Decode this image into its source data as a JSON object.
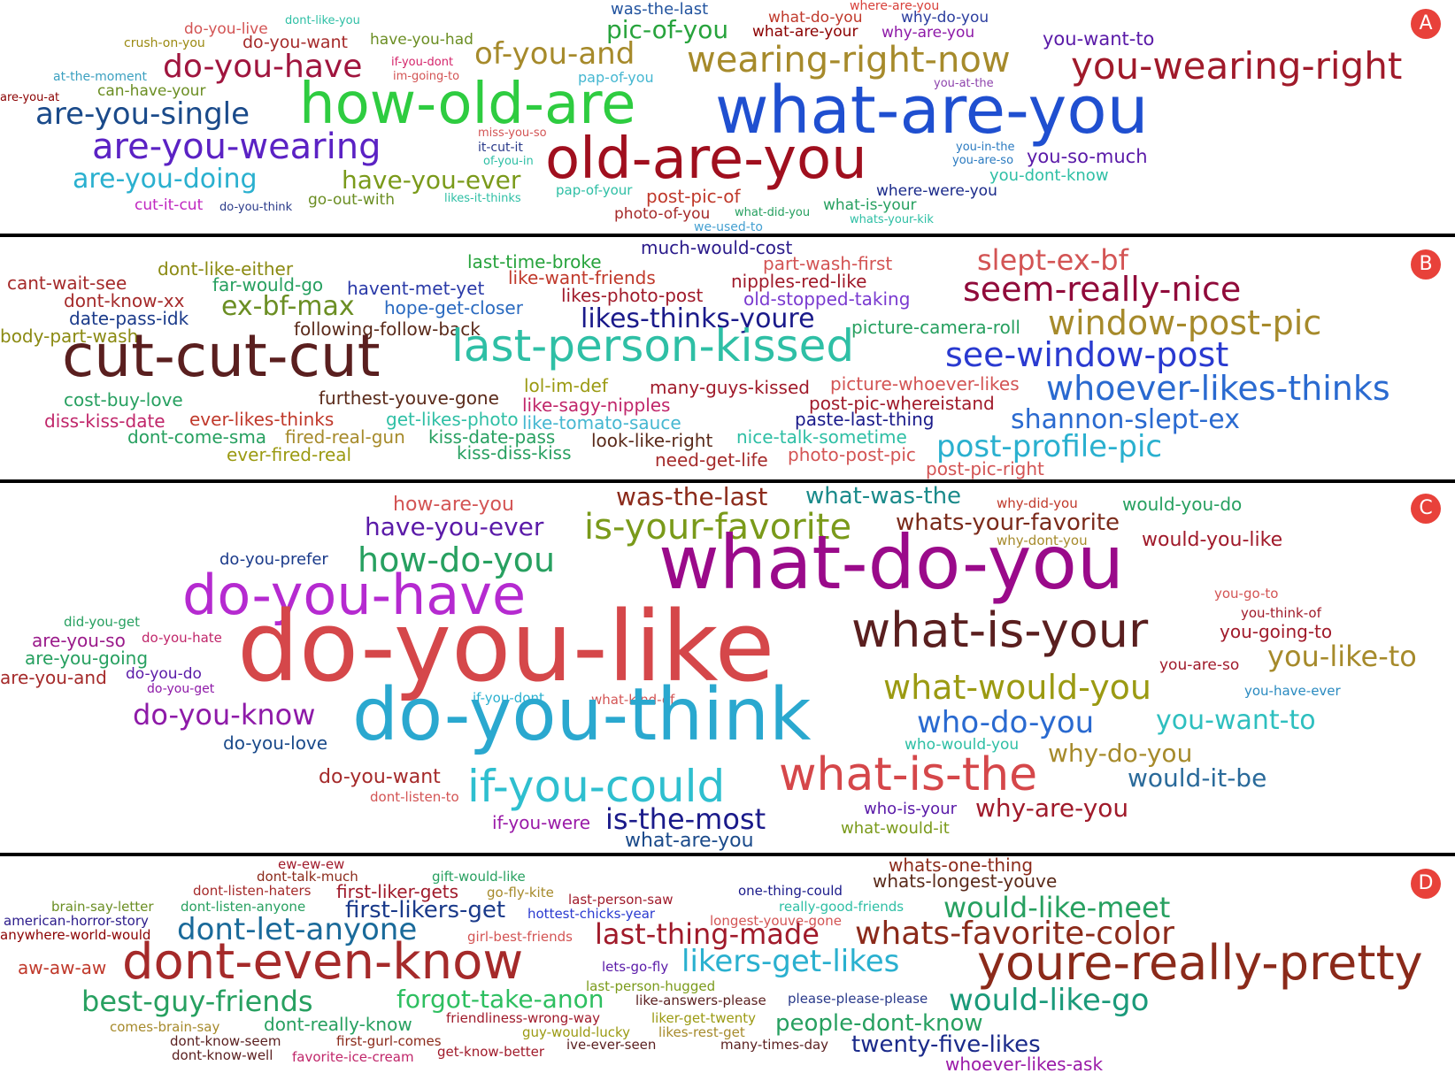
{
  "colors": {
    "badge": "#e8413a",
    "divider": "#000000"
  },
  "panels": [
    {
      "label": "A",
      "words": [
        {
          "t": "where-are-you",
          "c": "#d8403a"
        },
        {
          "t": "was-the-last",
          "c": "#23549f"
        },
        {
          "t": "what-do-you",
          "c": "#c0392b"
        },
        {
          "t": "why-do-you",
          "c": "#2c3e9f"
        },
        {
          "t": "dont-like-you",
          "c": "#2ebfa5"
        },
        {
          "t": "do-you-live",
          "c": "#d35454"
        },
        {
          "t": "pic-of-you",
          "c": "#27a33c"
        },
        {
          "t": "what-are-your",
          "c": "#8b0000"
        },
        {
          "t": "why-are-you",
          "c": "#8e1aa8"
        },
        {
          "t": "crush-on-you",
          "c": "#9b8a12"
        },
        {
          "t": "do-you-want",
          "c": "#a52a2a"
        },
        {
          "t": "have-you-had",
          "c": "#6b8e23"
        },
        {
          "t": "you-want-to",
          "c": "#5a1aa8"
        },
        {
          "t": "of-you-and",
          "c": "#a68a2b"
        },
        {
          "t": "wearing-right-now",
          "c": "#a68a2b"
        },
        {
          "t": "you-wearing-right",
          "c": "#a01a2a"
        },
        {
          "t": "if-you-dont",
          "c": "#d4246a"
        },
        {
          "t": "do-you-have",
          "c": "#a0153e"
        },
        {
          "t": "im-going-to",
          "c": "#d35454"
        },
        {
          "t": "at-the-moment",
          "c": "#3ba0c0"
        },
        {
          "t": "pap-of-you",
          "c": "#45b7d1"
        },
        {
          "t": "can-have-your",
          "c": "#6b8e23"
        },
        {
          "t": "you-at-the",
          "c": "#8e44ad"
        },
        {
          "t": "are-you-at",
          "c": "#8b0000"
        },
        {
          "t": "how-old-are",
          "c": "#2ecc40"
        },
        {
          "t": "what-are-you",
          "c": "#1f4fd0"
        },
        {
          "t": "are-you-single",
          "c": "#1a4a8a"
        },
        {
          "t": "miss-you-so",
          "c": "#d35454"
        },
        {
          "t": "are-you-wearing",
          "c": "#5b22c4"
        },
        {
          "t": "it-cut-it",
          "c": "#2a3a8a"
        },
        {
          "t": "of-you-in",
          "c": "#2ebfa5"
        },
        {
          "t": "old-are-you",
          "c": "#a00f1e"
        },
        {
          "t": "you-in-the",
          "c": "#2a7ac0"
        },
        {
          "t": "you-are-so",
          "c": "#2a7ac0"
        },
        {
          "t": "you-so-much",
          "c": "#5a1aa8"
        },
        {
          "t": "are-you-doing",
          "c": "#2ab0cf"
        },
        {
          "t": "have-you-ever",
          "c": "#7a9a1a"
        },
        {
          "t": "you-dont-know",
          "c": "#2ebfa5"
        },
        {
          "t": "pap-of-your",
          "c": "#2ebfa5"
        },
        {
          "t": "post-pic-of",
          "c": "#c0392b"
        },
        {
          "t": "where-were-you",
          "c": "#1a2a8a"
        },
        {
          "t": "likes-it-thinks",
          "c": "#2ebfa5"
        },
        {
          "t": "go-out-with",
          "c": "#6b8e23"
        },
        {
          "t": "cut-it-cut",
          "c": "#c026c0"
        },
        {
          "t": "do-you-think",
          "c": "#2a3a8a"
        },
        {
          "t": "what-is-your",
          "c": "#27a060"
        },
        {
          "t": "photo-of-you",
          "c": "#a52a2a"
        },
        {
          "t": "what-did-you",
          "c": "#27a060"
        },
        {
          "t": "whats-your-kik",
          "c": "#2ebfa5"
        },
        {
          "t": "we-used-to",
          "c": "#45a0d1"
        }
      ]
    },
    {
      "label": "B",
      "words": [
        {
          "t": "much-would-cost",
          "c": "#2a1a8a"
        },
        {
          "t": "last-time-broke",
          "c": "#27a33c"
        },
        {
          "t": "part-wash-first",
          "c": "#d35454"
        },
        {
          "t": "slept-ex-bf",
          "c": "#d35454"
        },
        {
          "t": "dont-like-either",
          "c": "#8b8a12"
        },
        {
          "t": "like-want-friends",
          "c": "#c0392b"
        },
        {
          "t": "cant-wait-see",
          "c": "#a52a2a"
        },
        {
          "t": "far-would-go",
          "c": "#27a060"
        },
        {
          "t": "havent-met-yet",
          "c": "#2a3aa8"
        },
        {
          "t": "nipples-red-like",
          "c": "#a01a2a"
        },
        {
          "t": "seem-really-nice",
          "c": "#900a3a"
        },
        {
          "t": "dont-know-xx",
          "c": "#a52a2a"
        },
        {
          "t": "likes-photo-post",
          "c": "#a01a2a"
        },
        {
          "t": "old-stopped-taking",
          "c": "#7a3ad0"
        },
        {
          "t": "ex-bf-max",
          "c": "#6b8e23"
        },
        {
          "t": "hope-get-closer",
          "c": "#2a6ac0"
        },
        {
          "t": "date-pass-idk",
          "c": "#1a3a8a"
        },
        {
          "t": "likes-thinks-youre",
          "c": "#1a1a8a"
        },
        {
          "t": "window-post-pic",
          "c": "#a68a2b"
        },
        {
          "t": "following-follow-back",
          "c": "#5a2a1a"
        },
        {
          "t": "picture-camera-roll",
          "c": "#27a060"
        },
        {
          "t": "body-part-wash",
          "c": "#8b8a12"
        },
        {
          "t": "cut-cut-cut",
          "c": "#5a1f1f"
        },
        {
          "t": "last-person-kissed",
          "c": "#2ebfa5"
        },
        {
          "t": "see-window-post",
          "c": "#2a3ad0"
        },
        {
          "t": "lol-im-def",
          "c": "#9b9a12"
        },
        {
          "t": "many-guys-kissed",
          "c": "#a01a2a"
        },
        {
          "t": "picture-whoever-likes",
          "c": "#d35454"
        },
        {
          "t": "whoever-likes-thinks",
          "c": "#2a6ad0"
        },
        {
          "t": "cost-buy-love",
          "c": "#27a060"
        },
        {
          "t": "furthest-youve-gone",
          "c": "#5a2a1a"
        },
        {
          "t": "like-sagy-nipples",
          "c": "#c0266a"
        },
        {
          "t": "post-pic-whereistand",
          "c": "#a01a2a"
        },
        {
          "t": "diss-kiss-date",
          "c": "#c0266a"
        },
        {
          "t": "ever-likes-thinks",
          "c": "#c0392b"
        },
        {
          "t": "get-likes-photo",
          "c": "#2ebfa5"
        },
        {
          "t": "paste-last-thing",
          "c": "#1a1a8a"
        },
        {
          "t": "shannon-slept-ex",
          "c": "#2a6ad0"
        },
        {
          "t": "like-tomato-sauce",
          "c": "#45b7d1"
        },
        {
          "t": "dont-come-sma",
          "c": "#27a060"
        },
        {
          "t": "fired-real-gun",
          "c": "#a68a2b"
        },
        {
          "t": "kiss-date-pass",
          "c": "#27a060"
        },
        {
          "t": "look-like-right",
          "c": "#5a2a1a"
        },
        {
          "t": "nice-talk-sometime",
          "c": "#2ebfa5"
        },
        {
          "t": "ever-fired-real",
          "c": "#9b9a12"
        },
        {
          "t": "kiss-diss-kiss",
          "c": "#27a060"
        },
        {
          "t": "need-get-life",
          "c": "#a52a2a"
        },
        {
          "t": "photo-post-pic",
          "c": "#d35454"
        },
        {
          "t": "post-profile-pic",
          "c": "#2ab0cf"
        },
        {
          "t": "post-pic-right",
          "c": "#d35454"
        }
      ]
    },
    {
      "label": "C",
      "words": [
        {
          "t": "was-the-last",
          "c": "#8b2a1a"
        },
        {
          "t": "what-was-the",
          "c": "#1a8a8a"
        },
        {
          "t": "how-are-you",
          "c": "#d35454"
        },
        {
          "t": "why-did-you",
          "c": "#c0392b"
        },
        {
          "t": "would-you-do",
          "c": "#27a060"
        },
        {
          "t": "have-you-ever",
          "c": "#5a1aa8"
        },
        {
          "t": "is-your-favorite",
          "c": "#7a9a1a"
        },
        {
          "t": "whats-your-favorite",
          "c": "#7a2a1a"
        },
        {
          "t": "why-dont-you",
          "c": "#a68a2b"
        },
        {
          "t": "would-you-like",
          "c": "#a01a2a"
        },
        {
          "t": "do-you-prefer",
          "c": "#1a3a8a"
        },
        {
          "t": "how-do-you",
          "c": "#27a060"
        },
        {
          "t": "what-do-you",
          "c": "#9a0a8a"
        },
        {
          "t": "do-you-have",
          "c": "#b52ad0"
        },
        {
          "t": "you-go-to",
          "c": "#d35454"
        },
        {
          "t": "you-think-of",
          "c": "#a01a2a"
        },
        {
          "t": "did-you-get",
          "c": "#27a060"
        },
        {
          "t": "do-you-like",
          "c": "#d5474a"
        },
        {
          "t": "what-is-your",
          "c": "#5a1f1f"
        },
        {
          "t": "you-going-to",
          "c": "#a01a2a"
        },
        {
          "t": "are-you-so",
          "c": "#9a1a8a"
        },
        {
          "t": "do-you-hate",
          "c": "#c0266a"
        },
        {
          "t": "are-you-going",
          "c": "#27a060"
        },
        {
          "t": "you-like-to",
          "c": "#a68a2b"
        },
        {
          "t": "you-are-so",
          "c": "#a01a2a"
        },
        {
          "t": "are-you-and",
          "c": "#a52a2a"
        },
        {
          "t": "do-you-do",
          "c": "#5a1aa8"
        },
        {
          "t": "do-you-get",
          "c": "#8e1aa8"
        },
        {
          "t": "what-would-you",
          "c": "#9b9a12"
        },
        {
          "t": "you-have-ever",
          "c": "#2a8ac0"
        },
        {
          "t": "if-you-dont",
          "c": "#2ab0cf"
        },
        {
          "t": "what-kind-of",
          "c": "#d35454"
        },
        {
          "t": "do-you-know",
          "c": "#8e1aa8"
        },
        {
          "t": "do-you-think",
          "c": "#2aa8cf"
        },
        {
          "t": "who-do-you",
          "c": "#2a6ad0"
        },
        {
          "t": "you-want-to",
          "c": "#2ebfbf"
        },
        {
          "t": "do-you-love",
          "c": "#1a4a8a"
        },
        {
          "t": "who-would-you",
          "c": "#2ebfa5"
        },
        {
          "t": "why-do-you",
          "c": "#a68a2b"
        },
        {
          "t": "do-you-want",
          "c": "#a52a2a"
        },
        {
          "t": "what-is-the",
          "c": "#d5474a"
        },
        {
          "t": "would-it-be",
          "c": "#2a6a9a"
        },
        {
          "t": "dont-listen-to",
          "c": "#d35454"
        },
        {
          "t": "if-you-could",
          "c": "#2ebfcf"
        },
        {
          "t": "who-is-your",
          "c": "#5a1aa8"
        },
        {
          "t": "why-are-you",
          "c": "#a01a2a"
        },
        {
          "t": "if-you-were",
          "c": "#9a1aa8"
        },
        {
          "t": "is-the-most",
          "c": "#1a1a8a"
        },
        {
          "t": "what-would-it",
          "c": "#7a9a1a"
        },
        {
          "t": "what-are-you",
          "c": "#1a4a8a"
        }
      ]
    },
    {
      "label": "D",
      "words": [
        {
          "t": "ew-ew-ew",
          "c": "#a01a2a"
        },
        {
          "t": "whats-one-thing",
          "c": "#8b2a1a"
        },
        {
          "t": "dont-talk-much",
          "c": "#8b2a1a"
        },
        {
          "t": "gift-would-like",
          "c": "#27a060"
        },
        {
          "t": "whats-longest-youve",
          "c": "#5a2a1a"
        },
        {
          "t": "dont-listen-haters",
          "c": "#a52a2a"
        },
        {
          "t": "first-liker-gets",
          "c": "#a01a2a"
        },
        {
          "t": "go-fly-kite",
          "c": "#a68a2b"
        },
        {
          "t": "one-thing-could",
          "c": "#1a1a8a"
        },
        {
          "t": "last-person-saw",
          "c": "#a01a2a"
        },
        {
          "t": "brain-say-letter",
          "c": "#6b8e23"
        },
        {
          "t": "dont-listen-anyone",
          "c": "#27a060"
        },
        {
          "t": "first-likers-get",
          "c": "#1a3a8a"
        },
        {
          "t": "hottest-chicks-year",
          "c": "#2a3ad0"
        },
        {
          "t": "really-good-friends",
          "c": "#2ebfa5"
        },
        {
          "t": "would-like-meet",
          "c": "#27a060"
        },
        {
          "t": "american-horror-story",
          "c": "#2a1a8a"
        },
        {
          "t": "dont-let-anyone",
          "c": "#1a6a9a"
        },
        {
          "t": "longest-youve-gone",
          "c": "#d35454"
        },
        {
          "t": "anywhere-world-would",
          "c": "#8b0000"
        },
        {
          "t": "girl-best-friends",
          "c": "#d35454"
        },
        {
          "t": "last-thing-made",
          "c": "#a01a2a"
        },
        {
          "t": "whats-favorite-color",
          "c": "#8b2a1a"
        },
        {
          "t": "aw-aw-aw",
          "c": "#c0392b"
        },
        {
          "t": "dont-even-know",
          "c": "#a52a2a"
        },
        {
          "t": "lets-go-fly",
          "c": "#5a1aa8"
        },
        {
          "t": "likers-get-likes",
          "c": "#2ab0cf"
        },
        {
          "t": "youre-really-pretty",
          "c": "#8b2a1a"
        },
        {
          "t": "last-person-hugged",
          "c": "#7a9a1a"
        },
        {
          "t": "best-guy-friends",
          "c": "#27a060"
        },
        {
          "t": "forgot-take-anon",
          "c": "#2ebf60"
        },
        {
          "t": "like-answers-please",
          "c": "#5a1f1f"
        },
        {
          "t": "please-please-please",
          "c": "#2a3a8a"
        },
        {
          "t": "would-like-go",
          "c": "#1a9a7a"
        },
        {
          "t": "friendliness-wrong-way",
          "c": "#a01a2a"
        },
        {
          "t": "liker-get-twenty",
          "c": "#9b9a12"
        },
        {
          "t": "comes-brain-say",
          "c": "#a68a2b"
        },
        {
          "t": "dont-really-know",
          "c": "#27a060"
        },
        {
          "t": "guy-would-lucky",
          "c": "#9b9a12"
        },
        {
          "t": "likes-rest-get",
          "c": "#a68a2b"
        },
        {
          "t": "people-dont-know",
          "c": "#27a060"
        },
        {
          "t": "dont-know-seem",
          "c": "#5a1f1f"
        },
        {
          "t": "first-gurl-comes",
          "c": "#8b2a1a"
        },
        {
          "t": "many-times-day",
          "c": "#5a1f1f"
        },
        {
          "t": "twenty-five-likes",
          "c": "#1a2a8a"
        },
        {
          "t": "dont-know-well",
          "c": "#5a1f1f"
        },
        {
          "t": "favorite-ice-cream",
          "c": "#c0266a"
        },
        {
          "t": "get-know-better",
          "c": "#a01a2a"
        },
        {
          "t": "ive-ever-seen",
          "c": "#5a1f1f"
        },
        {
          "t": "whoever-likes-ask",
          "c": "#9a1aa8"
        }
      ]
    }
  ]
}
